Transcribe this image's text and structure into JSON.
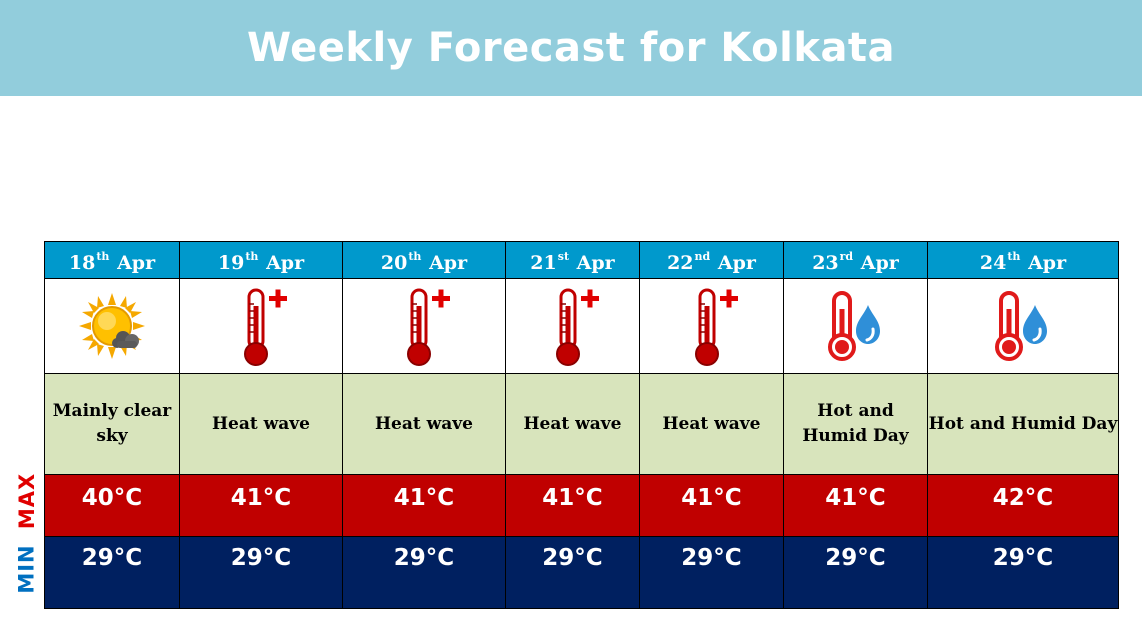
{
  "title": "Weekly Forecast for Kolkata",
  "labels": {
    "max": "MAX",
    "min": "MIN"
  },
  "colors": {
    "banner": "#92cddc",
    "date_header": "#0099cc",
    "description_bg": "#d8e4bc",
    "max_bg": "#c00000",
    "min_bg": "#002060",
    "max_label": "#e00000",
    "min_label": "#0070c0"
  },
  "days": [
    {
      "day": "18",
      "suffix": "th",
      "month": "Apr",
      "icon": "partly-sunny-icon",
      "description": "Mainly  clear sky",
      "max": "40°C",
      "min": "29°C"
    },
    {
      "day": "19",
      "suffix": "th",
      "month": "Apr",
      "icon": "heat-wave-thermometer-icon",
      "description": "Heat wave",
      "max": "41°C",
      "min": "29°C"
    },
    {
      "day": "20",
      "suffix": "th",
      "month": "Apr",
      "icon": "heat-wave-thermometer-icon",
      "description": "Heat wave",
      "max": "41°C",
      "min": "29°C"
    },
    {
      "day": "21",
      "suffix": "st",
      "month": "Apr",
      "icon": "heat-wave-thermometer-icon",
      "description": "Heat wave",
      "max": "41°C",
      "min": "29°C"
    },
    {
      "day": "22",
      "suffix": "nd",
      "month": "Apr",
      "icon": "heat-wave-thermometer-icon",
      "description": "Heat wave",
      "max": "41°C",
      "min": "29°C"
    },
    {
      "day": "23",
      "suffix": "rd",
      "month": "Apr",
      "icon": "hot-humid-thermometer-icon",
      "description": "Hot and Humid Day",
      "max": "41°C",
      "min": "29°C"
    },
    {
      "day": "24",
      "suffix": "th",
      "month": "Apr",
      "icon": "hot-humid-thermometer-icon",
      "description": "Hot and Humid  Day",
      "max": "42°C",
      "min": "29°C"
    }
  ]
}
